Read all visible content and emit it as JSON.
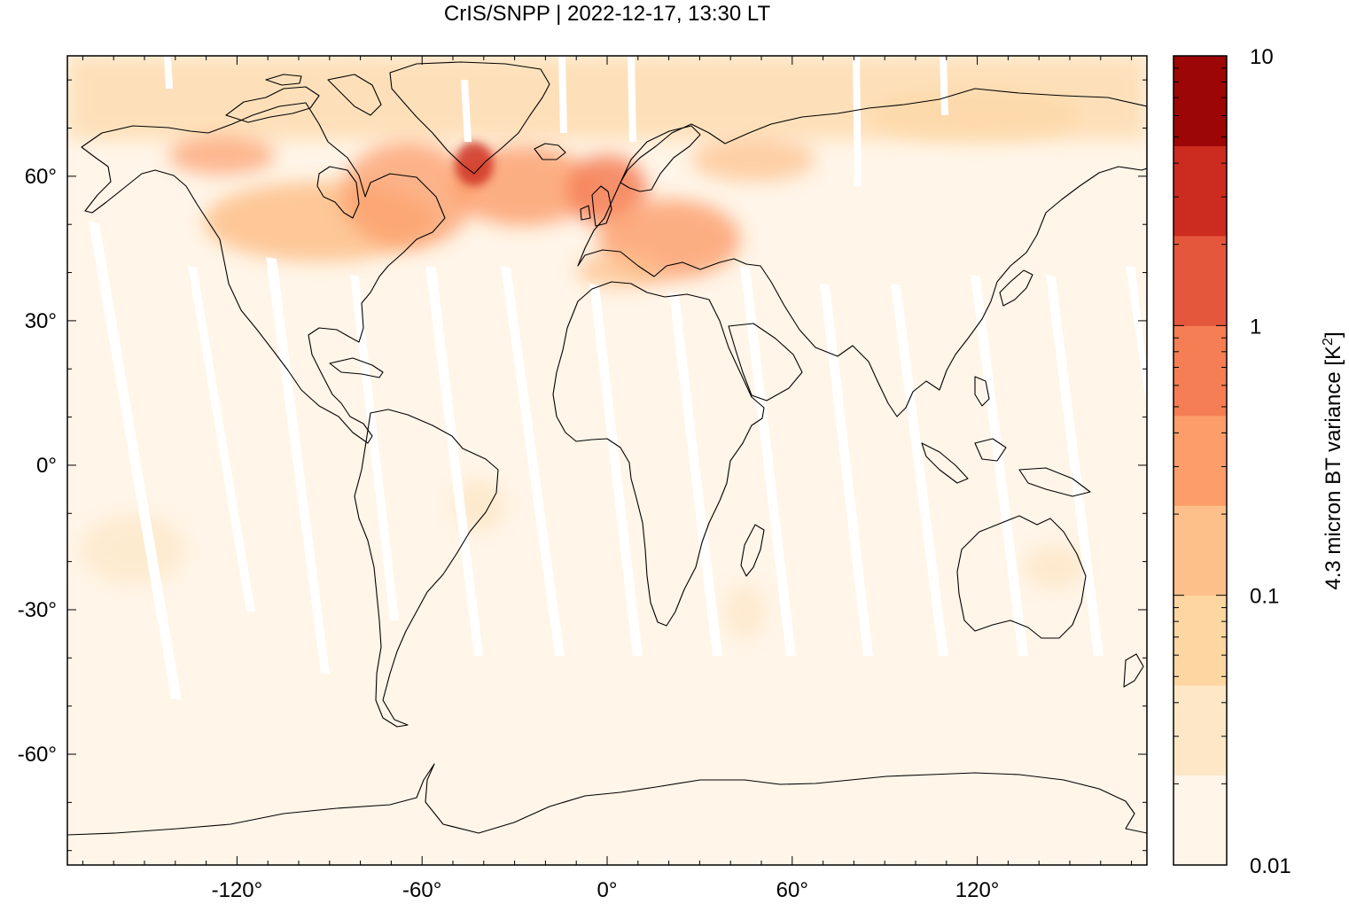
{
  "title": "CrIS/SNPP | 2022-12-17, 13:30 LT",
  "map": {
    "lon_range": [
      -175,
      175
    ],
    "lat_range": [
      -83,
      85
    ],
    "lon_ticks": [
      {
        "value": -120,
        "label": "-120°"
      },
      {
        "value": -60,
        "label": "-60°"
      },
      {
        "value": 0,
        "label": "0°"
      },
      {
        "value": 60,
        "label": "60°"
      },
      {
        "value": 120,
        "label": "120°"
      }
    ],
    "lat_ticks": [
      {
        "value": 60,
        "label": "60°"
      },
      {
        "value": 30,
        "label": "30°"
      },
      {
        "value": 0,
        "label": "0°"
      },
      {
        "value": -30,
        "label": "-30°"
      },
      {
        "value": -60,
        "label": "-60°"
      }
    ]
  },
  "colorbar": {
    "label": "4.3 micron BT variance [K",
    "label_sup": "2",
    "label_end": "]",
    "scale": "log",
    "range": [
      0.01,
      10
    ],
    "tick_labels": [
      {
        "value": 10,
        "label": "10"
      },
      {
        "value": 1,
        "label": "1"
      },
      {
        "value": 0.1,
        "label": "0.1"
      },
      {
        "value": 0.01,
        "label": "0.01"
      }
    ],
    "colors": [
      "#fff5e8",
      "#fde7c7",
      "#fdd6a2",
      "#fdc08a",
      "#fc9d6a",
      "#f57e55",
      "#e5573c",
      "#cc2b1f",
      "#9c0606"
    ]
  },
  "colors": {
    "background": "#fff5e8",
    "land_outline": "#000000",
    "swath_gap": "#ffffff"
  }
}
